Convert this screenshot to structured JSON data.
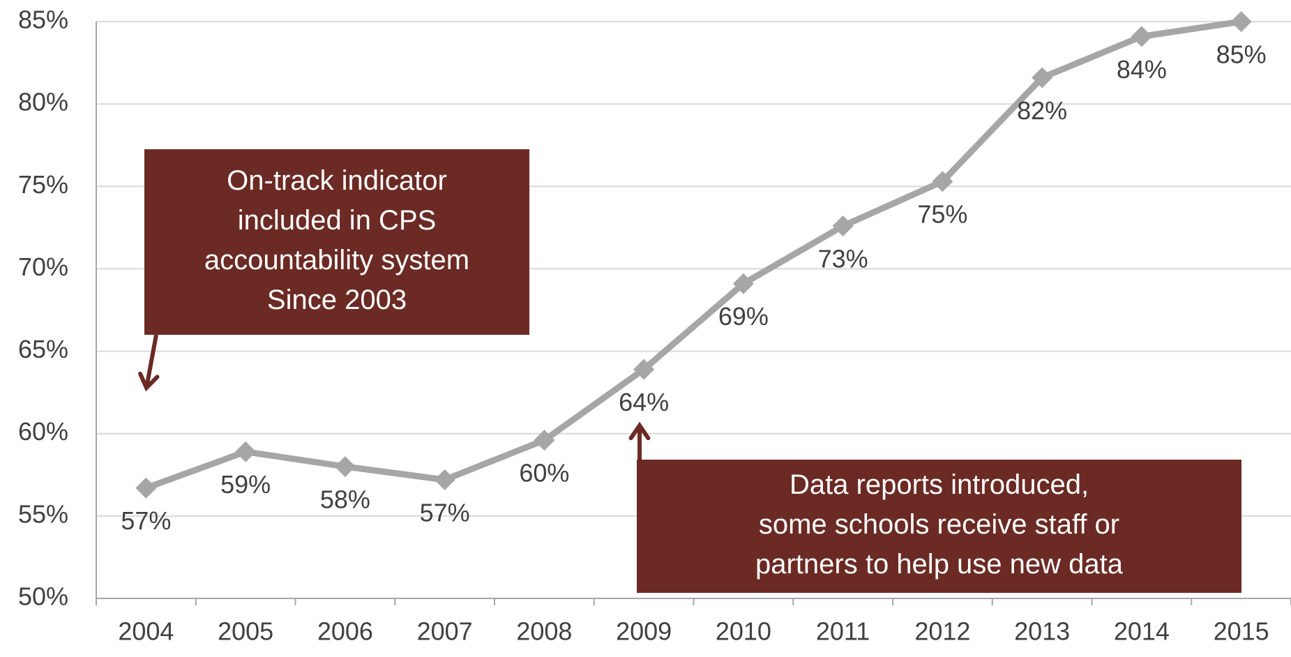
{
  "chart_data": {
    "type": "line",
    "categories": [
      "2004",
      "2005",
      "2006",
      "2007",
      "2008",
      "2009",
      "2010",
      "2011",
      "2012",
      "2013",
      "2014",
      "2015"
    ],
    "values": [
      56.7,
      58.9,
      58.0,
      57.2,
      59.6,
      63.9,
      69.1,
      72.6,
      75.3,
      81.6,
      84.1,
      85.0
    ],
    "value_labels": [
      "57%",
      "59%",
      "58%",
      "57%",
      "60%",
      "64%",
      "69%",
      "73%",
      "75%",
      "82%",
      "84%",
      "85%"
    ],
    "color": "#a6a6a6",
    "ylim": [
      50,
      85
    ],
    "yticks": [
      {
        "value": 50,
        "label": "50%"
      },
      {
        "value": 55,
        "label": "55%"
      },
      {
        "value": 60,
        "label": "60%"
      },
      {
        "value": 65,
        "label": "65%"
      },
      {
        "value": 70,
        "label": "70%"
      },
      {
        "value": 75,
        "label": "75%"
      },
      {
        "value": 80,
        "label": "80%"
      },
      {
        "value": 85,
        "label": "85%"
      }
    ],
    "grid": true,
    "annotations": [
      {
        "lines": [
          "On-track indicator",
          "included  in CPS",
          "accountability system",
          "Since 2003"
        ],
        "color": "#6b2a24"
      },
      {
        "lines": [
          "Data reports introduced,",
          "some schools receive staff or",
          "partners to help use new data"
        ],
        "color": "#6b2a24"
      }
    ]
  }
}
